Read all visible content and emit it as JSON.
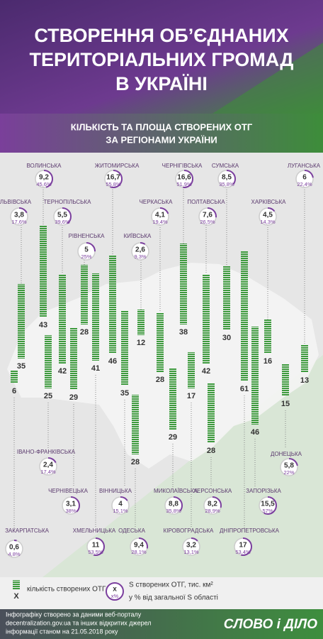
{
  "header": {
    "title_lines": [
      "СТВОРЕННЯ ОБ’ЄДНАНИХ",
      "ТЕРИТОРІАЛЬНИХ ГРОМАД",
      "В УКРАЇНІ"
    ],
    "subtitle_lines": [
      "КІЛЬКІСТЬ ТА ПЛОЩА СТВОРЕНИХ ОТГ",
      "ЗА РЕГІОНАМИ УКРАЇНИ"
    ]
  },
  "chart_data": {
    "type": "bar",
    "categories": [
      "ЗАКАРПАТСЬКА",
      "ЛЬВІВСЬКА",
      "ВОЛИНСЬКА",
      "ІВАНО-ФРАНКІВСЬКА",
      "ТЕРНОПІЛЬСЬКА",
      "ЧЕРНІВЕЦЬКА",
      "РІВНЕНСЬКА",
      "ХМЕЛЬНИЦЬКА",
      "ЖИТОМИРСЬКА",
      "ВІННИЦЬКА",
      "КИЇВСЬКА",
      "ОДЕСЬКА",
      "ЧЕРКАСЬКА",
      "МИКОЛАЇВСЬКА",
      "ЧЕРНІГІВСЬКА",
      "КІРОВОГРАДСЬКА",
      "ПОЛТАВСЬКА",
      "ХЕРСОНСЬКА",
      "СУМСЬКА",
      "ДНІПРОПЕТРОВСЬКА",
      "ЗАПОРІЗЬКА",
      "ХАРКІВСЬКА",
      "ДОНЕЦЬКА",
      "ЛУГАНСЬКА"
    ],
    "series": [
      {
        "name": "кількість створених ОТГ",
        "color": "#3d9a3d",
        "values": [
          6,
          35,
          43,
          25,
          42,
          29,
          28,
          41,
          46,
          35,
          12,
          28,
          28,
          29,
          38,
          17,
          42,
          28,
          30,
          61,
          46,
          16,
          15,
          13
        ]
      },
      {
        "name": "S створених ОТГ, тис. км²",
        "color": "#333333",
        "values": [
          0.6,
          3.8,
          9.2,
          2.4,
          5.5,
          3.1,
          5,
          11,
          16.7,
          4,
          2.6,
          9.4,
          4.1,
          8.8,
          16.6,
          3.2,
          7.6,
          8.2,
          8.5,
          17,
          15.5,
          4.5,
          5.8,
          6
        ],
        "value_labels": [
          "0,6",
          "3,8",
          "9,2",
          "2,4",
          "5,5",
          "3,1",
          "5",
          "11",
          "16,7",
          "4",
          "2,6",
          "9,4",
          "4,1",
          "8,8",
          "16,6",
          "3,2",
          "7,6",
          "8,2",
          "8,5",
          "17",
          "15,5",
          "4,5",
          "5,8",
          "6"
        ]
      },
      {
        "name": "у % від загальної S області",
        "color": "#7b3f9e",
        "values": [
          4.8,
          17.6,
          45.6,
          17.4,
          39.6,
          38,
          25,
          53.5,
          55.8,
          15.1,
          9.3,
          28.1,
          19.4,
          35.8,
          51.9,
          13.1,
          26.5,
          28.9,
          35.8,
          53.4,
          57,
          14.3,
          22,
          22.4
        ],
        "value_labels": [
          "4,8%",
          "17,6%",
          "45,6%",
          "17,4%",
          "39,6%",
          "38%",
          "25%",
          "53,5%",
          "55,8%",
          "15,1%",
          "9,3%",
          "28,1%",
          "19,4%",
          "35,8%",
          "51,9%",
          "13,1%",
          "26,5%",
          "28,9%",
          "35,8%",
          "53,4%",
          "57%",
          "14,3%",
          "22%",
          "22,4%"
        ]
      }
    ],
    "legend_symbols": {
      "count": "X",
      "area": "x",
      "percent": "x%"
    }
  },
  "footer": {
    "source_lines": [
      "Інфографіку створено за даними веб-порталу",
      "decentralization.gov.ua та інших відкритих джерел",
      "інформації станом на 21.05.2018 року"
    ],
    "logo": "СЛОВО і ДІЛО"
  }
}
